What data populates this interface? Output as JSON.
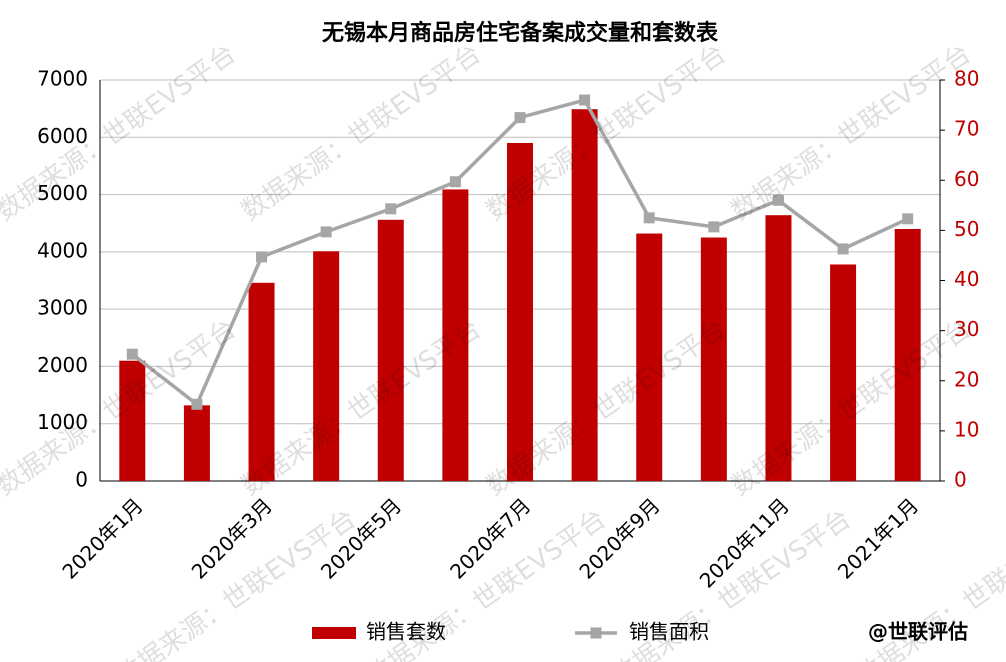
{
  "chart_data": {
    "type": "bar_line",
    "title": "无锡本月商品房住宅备案成交量和套数表",
    "categories": [
      "2020年1月",
      null,
      "2020年3月",
      null,
      "2020年5月",
      null,
      "2020年7月",
      null,
      "2020年9月",
      null,
      "2020年11月",
      null,
      "2021年1月"
    ],
    "series": [
      {
        "name": "销售套数",
        "type": "bar",
        "color": "#c00000",
        "values": [
          2100,
          1320,
          3460,
          4010,
          4560,
          5090,
          5900,
          6490,
          4320,
          4250,
          4640,
          3780,
          4400
        ]
      },
      {
        "name": "销售面积",
        "type": "line",
        "axis": "y2",
        "color": "#a6a6a6",
        "values": [
          25.3,
          15.3,
          44.7,
          49.7,
          54.3,
          59.7,
          72.5,
          76,
          52.5,
          50.7,
          56,
          46.3,
          52.3
        ]
      }
    ],
    "ylim": [
      0,
      7000
    ],
    "yticks": [
      0,
      1000,
      2000,
      3000,
      4000,
      5000,
      6000,
      7000
    ],
    "y2lim": [
      0,
      80
    ],
    "y2ticks": [
      0,
      10,
      20,
      30,
      40,
      50,
      60,
      70,
      80
    ],
    "y2color": "#c00000",
    "grid": true,
    "legend": "bottom",
    "watermark": "数据来源：世联EVS平台",
    "credit": "@世联评估"
  }
}
